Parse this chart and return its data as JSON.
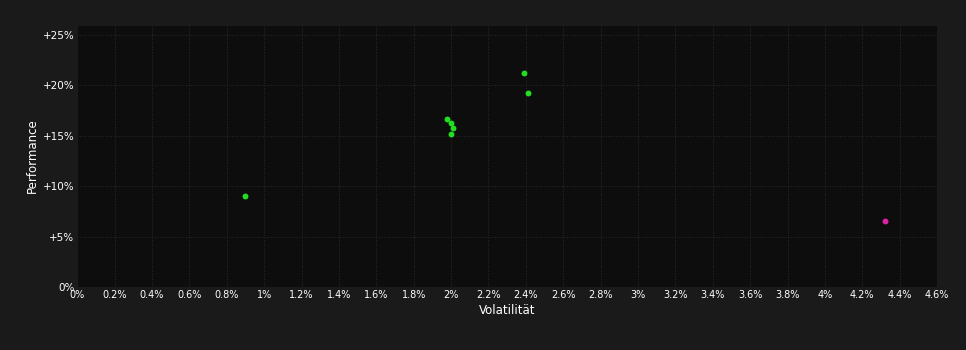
{
  "background_color": "#1a1a1a",
  "plot_bg_color": "#0d0d0d",
  "grid_color": "#2a2a2a",
  "text_color": "#ffffff",
  "xlabel": "Volatilität",
  "ylabel": "Performance",
  "xlim": [
    0,
    0.046
  ],
  "ylim": [
    0,
    0.26
  ],
  "xticks": [
    0.0,
    0.002,
    0.004,
    0.006,
    0.008,
    0.01,
    0.012,
    0.014,
    0.016,
    0.018,
    0.02,
    0.022,
    0.024,
    0.026,
    0.028,
    0.03,
    0.032,
    0.034,
    0.036,
    0.038,
    0.04,
    0.042,
    0.044,
    0.046
  ],
  "xtick_labels": [
    "0%",
    "0.2%",
    "0.4%",
    "0.6%",
    "0.8%",
    "1%",
    "1.2%",
    "1.4%",
    "1.6%",
    "1.8%",
    "2%",
    "2.2%",
    "2.4%",
    "2.6%",
    "2.8%",
    "3%",
    "3.2%",
    "3.4%",
    "3.6%",
    "3.8%",
    "4%",
    "4.2%",
    "4.4%",
    "4.6%"
  ],
  "yticks": [
    0.0,
    0.05,
    0.1,
    0.15,
    0.2,
    0.25
  ],
  "ytick_labels": [
    "0%",
    "+5%",
    "+10%",
    "+15%",
    "+20%",
    "+25%"
  ],
  "green_points": [
    [
      0.009,
      0.09
    ],
    [
      0.0198,
      0.166
    ],
    [
      0.02,
      0.162
    ],
    [
      0.0201,
      0.157
    ],
    [
      0.02,
      0.152
    ],
    [
      0.0239,
      0.212
    ],
    [
      0.0241,
      0.192
    ]
  ],
  "magenta_points": [
    [
      0.0432,
      0.065
    ]
  ],
  "green_color": "#22dd22",
  "magenta_color": "#dd22aa",
  "marker_size": 5
}
